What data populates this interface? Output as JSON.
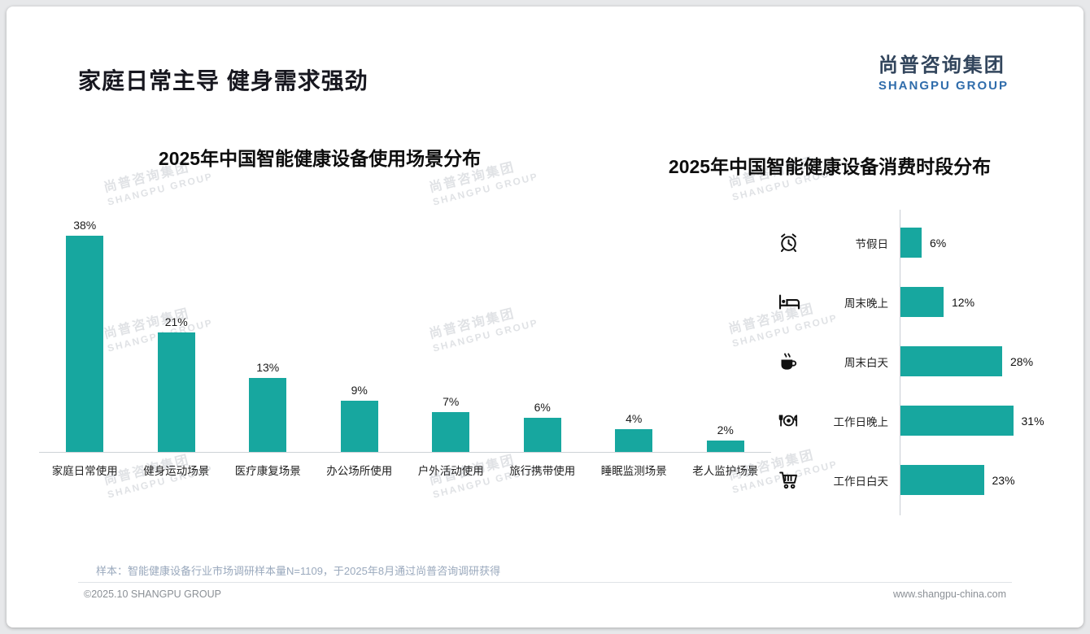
{
  "page": {
    "title": "家庭日常主导 健身需求强劲",
    "sample_note": "样本：智能健康设备行业市场调研样本量N=1109，于2025年8月通过尚普咨询调研获得",
    "footer_left": "©2025.10 SHANGPU GROUP",
    "footer_right": "www.shangpu-china.com"
  },
  "logo": {
    "name_cn": "尚普咨询集团",
    "name_en": "SHANGPU GROUP"
  },
  "watermark": {
    "line1": "尚普咨询集团",
    "line2": "SHANGPU GROUP"
  },
  "colors": {
    "accent_teal": "#17a79f",
    "title_dark": "#17171f",
    "logo_blue": "#2f6cab"
  },
  "chart_data": [
    {
      "type": "bar",
      "orientation": "vertical",
      "title": "2025年中国智能健康设备使用场景分布",
      "categories": [
        "家庭日常使用",
        "健身运动场景",
        "医疗康复场景",
        "办公场所使用",
        "户外活动使用",
        "旅行携带使用",
        "睡眠监测场景",
        "老人监护场景"
      ],
      "values": [
        38,
        21,
        13,
        9,
        7,
        6,
        4,
        2
      ],
      "unit": "%",
      "ylim": [
        0,
        40
      ],
      "bar_color": "#17a79f",
      "grid": false,
      "legend": "none"
    },
    {
      "type": "bar",
      "orientation": "horizontal",
      "title": "2025年中国智能健康设备消费时段分布",
      "categories": [
        "节假日",
        "周末晚上",
        "周末白天",
        "工作日晚上",
        "工作日白天"
      ],
      "values": [
        6,
        12,
        28,
        31,
        23
      ],
      "icons": [
        "alarm-clock-icon",
        "bed-icon",
        "coffee-icon",
        "dining-icon",
        "shopping-cart-icon"
      ],
      "unit": "%",
      "xlim": [
        0,
        35
      ],
      "bar_color": "#17a79f",
      "grid": false,
      "legend": "none"
    }
  ]
}
